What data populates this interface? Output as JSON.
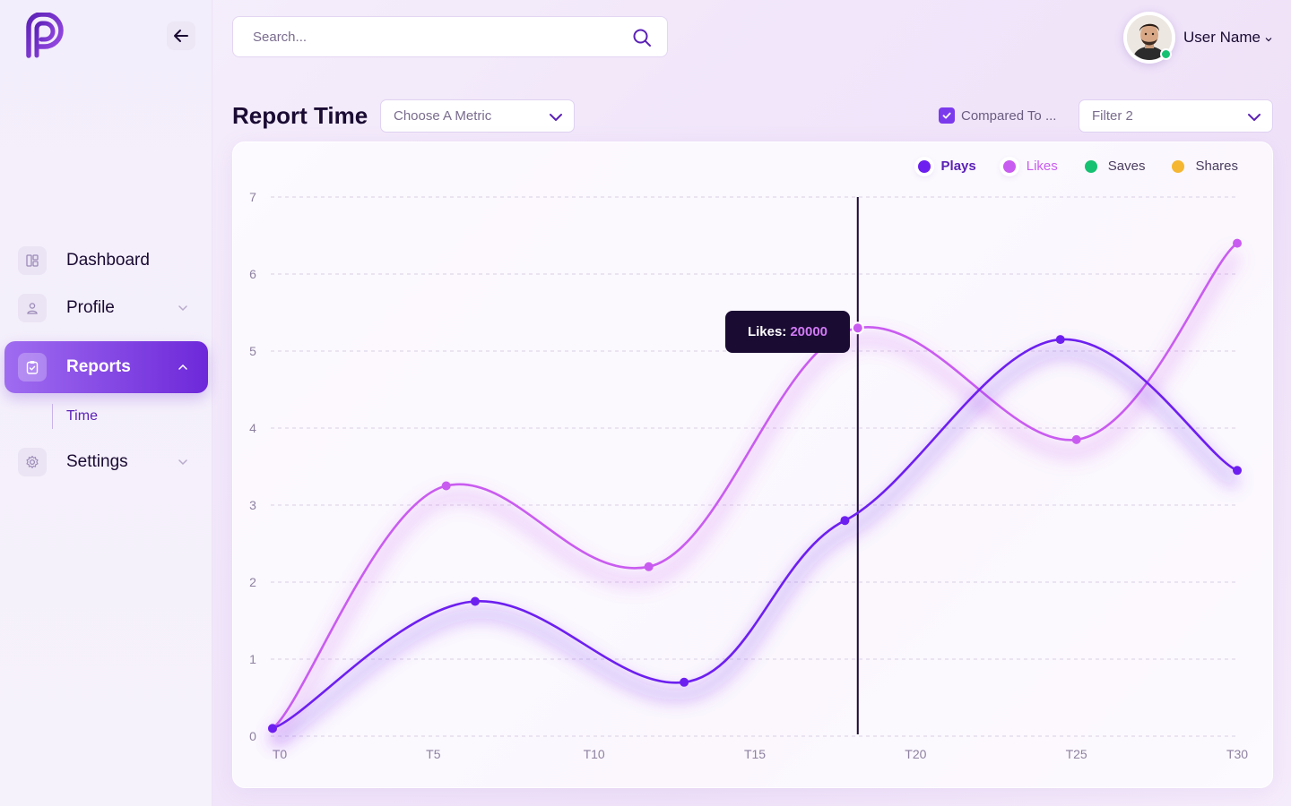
{
  "sidebar": {
    "items": [
      {
        "label": "Dashboard",
        "icon": "dashboard-icon"
      },
      {
        "label": "Profile",
        "icon": "user-icon"
      },
      {
        "label": "Reports",
        "icon": "clipboard-icon"
      },
      {
        "label": "Settings",
        "icon": "gear-icon"
      }
    ],
    "sub_items": [
      {
        "label": "Time"
      }
    ]
  },
  "search": {
    "placeholder": "Search..."
  },
  "user": {
    "name": "User Name"
  },
  "header": {
    "title": "Report Time",
    "metric_select": "Choose A Metric",
    "compare_label": "Compared To ...",
    "filter_select": "Filter 2"
  },
  "colors": {
    "plays": "#6d1ff0",
    "likes": "#c95cf0",
    "saves": "#16c172",
    "shares": "#f5b731",
    "accent": "#7c3aed"
  },
  "tooltip": {
    "label": "Likes:",
    "value": "20000"
  },
  "chart_data": {
    "type": "line",
    "title": "",
    "xlabel": "",
    "ylabel": "",
    "ylim": [
      0,
      7
    ],
    "xlim": [
      0,
      30
    ],
    "x_ticks": [
      "T0",
      "T5",
      "T10",
      "T15",
      "T20",
      "T25",
      "T30"
    ],
    "y_ticks": [
      "0",
      "1",
      "2",
      "3",
      "4",
      "5",
      "6",
      "7"
    ],
    "grid": true,
    "legend_position": "top-right",
    "series": [
      {
        "name": "Plays",
        "color": "#6d1ff0",
        "x": [
          0,
          6.3,
          12.8,
          17.8,
          24.5,
          30
        ],
        "y": [
          0.1,
          1.75,
          0.7,
          2.8,
          5.15,
          3.45
        ]
      },
      {
        "name": "Likes",
        "color": "#c95cf0",
        "x": [
          0,
          5.4,
          11.7,
          18.2,
          25,
          30
        ],
        "y": [
          0.1,
          3.25,
          2.2,
          5.3,
          3.85,
          6.4
        ]
      },
      {
        "name": "Saves",
        "color": "#16c172",
        "x": [],
        "y": []
      },
      {
        "name": "Shares",
        "color": "#f5b731",
        "x": [],
        "y": []
      }
    ],
    "highlight_x": 18.2
  }
}
